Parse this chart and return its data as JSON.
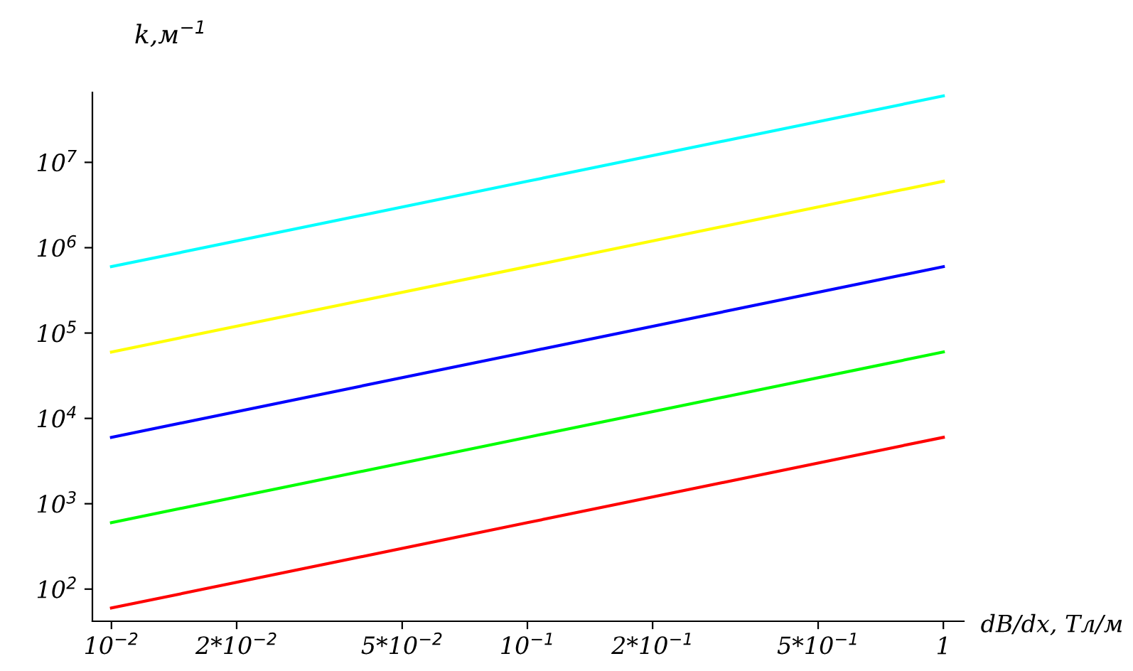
{
  "chart_data": {
    "type": "line",
    "xlabel": "dB/dx, Тл/м",
    "ylabel": "k,м$^{−1}$",
    "log": "xy",
    "x": [
      0.01,
      0.1,
      1
    ],
    "series": [
      {
        "color": "#ff0000",
        "values": [
          60,
          600,
          6000
        ]
      },
      {
        "color": "#00ff00",
        "values": [
          600,
          6000,
          60000
        ]
      },
      {
        "color": "#0000ff",
        "values": [
          6000,
          60000,
          600000
        ]
      },
      {
        "color": "#ffff00",
        "values": [
          60000,
          600000,
          6000000
        ]
      },
      {
        "color": "#00ffff",
        "values": [
          600000,
          6000000,
          60000000
        ]
      }
    ],
    "xlim": [
      0.009,
      1.12
    ],
    "ylim": [
      42,
      66000000
    ],
    "xticks": [
      {
        "value": 0.01,
        "label": "10$^{−2}$"
      },
      {
        "value": 0.02,
        "label": "2*10$^{−2}$"
      },
      {
        "value": 0.05,
        "label": "5*10$^{−2}$"
      },
      {
        "value": 0.1,
        "label": "10$^{−1}$"
      },
      {
        "value": 0.2,
        "label": "2*10$^{−1}$"
      },
      {
        "value": 0.5,
        "label": "5*10$^{−1}$"
      },
      1
    ],
    "yticks": [
      {
        "value": 100,
        "label": "10$^{2}$"
      },
      {
        "value": 1000,
        "label": "10$^{3}$"
      },
      {
        "value": 10000,
        "label": "10$^{4}$"
      },
      {
        "value": 100000,
        "label": "10$^{5}$"
      },
      {
        "value": 1000000,
        "label": "10$^{6}$"
      },
      {
        "value": 10000000,
        "label": "10$^{7}$"
      }
    ],
    "grid": false,
    "legend": false
  }
}
